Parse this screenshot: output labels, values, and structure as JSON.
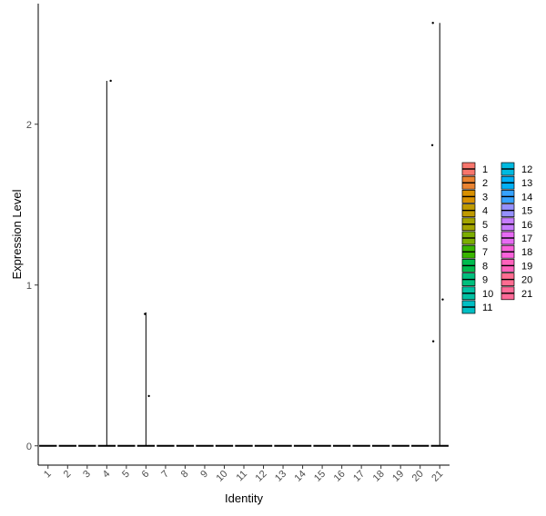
{
  "chart_data": {
    "type": "violin",
    "xlabel": "Identity",
    "ylabel": "Expression Level",
    "categories": [
      "1",
      "2",
      "3",
      "4",
      "5",
      "6",
      "7",
      "8",
      "9",
      "10",
      "11",
      "12",
      "13",
      "14",
      "15",
      "16",
      "17",
      "18",
      "19",
      "20",
      "21"
    ],
    "yticks": [
      0,
      1,
      2
    ],
    "ylim": [
      -0.12,
      2.75
    ],
    "grid": false,
    "legend_position": "right",
    "colors": [
      "#F8766D",
      "#EA8331",
      "#D89000",
      "#C09B00",
      "#A3A500",
      "#7CAE00",
      "#39B600",
      "#00BB4E",
      "#00BF7D",
      "#00C1A3",
      "#00BFC4",
      "#00BAE0",
      "#00B0F6",
      "#35A2FF",
      "#9590FF",
      "#C77CFF",
      "#E76BF3",
      "#FA62DB",
      "#FF62BC",
      "#FF6C91",
      "#FF6A98"
    ],
    "violins": [
      {
        "category": "4",
        "max": 2.27
      },
      {
        "category": "6",
        "max": 0.83
      },
      {
        "category": "21",
        "max": 2.63
      }
    ],
    "points": [
      {
        "category": "4",
        "y": 2.27,
        "jitter": 0.2
      },
      {
        "category": "6",
        "y": 0.82,
        "jitter": -0.05
      },
      {
        "category": "6",
        "y": 0.31,
        "jitter": 0.15
      },
      {
        "category": "21",
        "y": 2.63,
        "jitter": -0.35
      },
      {
        "category": "21",
        "y": 1.87,
        "jitter": -0.38
      },
      {
        "category": "21",
        "y": 0.91,
        "jitter": 0.15
      },
      {
        "category": "21",
        "y": 0.65,
        "jitter": -0.33
      }
    ]
  }
}
